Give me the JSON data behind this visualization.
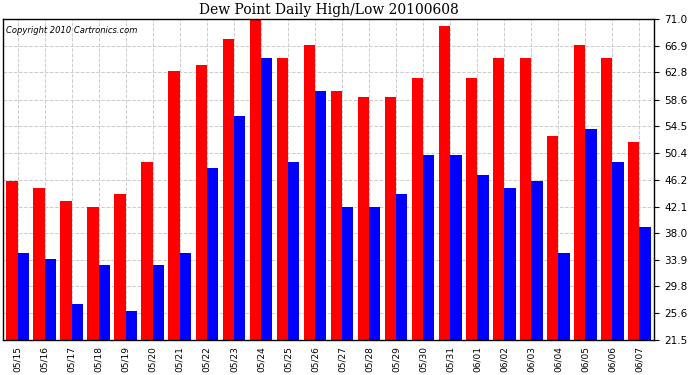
{
  "title": "Dew Point Daily High/Low 20100608",
  "copyright": "Copyright 2010 Cartronics.com",
  "dates": [
    "05/15",
    "05/16",
    "05/17",
    "05/18",
    "05/19",
    "05/20",
    "05/21",
    "05/22",
    "05/23",
    "05/24",
    "05/25",
    "05/26",
    "05/27",
    "05/28",
    "05/29",
    "05/30",
    "05/31",
    "06/01",
    "06/02",
    "06/03",
    "06/04",
    "06/05",
    "06/06",
    "06/07"
  ],
  "highs": [
    46,
    45,
    43,
    42,
    44,
    49,
    63,
    64,
    68,
    71,
    65,
    67,
    60,
    59,
    59,
    62,
    70,
    62,
    65,
    65,
    53,
    67,
    65,
    52
  ],
  "lows": [
    35,
    34,
    27,
    33,
    26,
    33,
    35,
    48,
    56,
    65,
    49,
    60,
    42,
    42,
    44,
    50,
    50,
    47,
    45,
    46,
    35,
    54,
    49,
    39
  ],
  "high_color": "#ff0000",
  "low_color": "#0000ff",
  "ylim_min": 21.5,
  "ylim_max": 71.0,
  "yticks": [
    21.5,
    25.6,
    29.8,
    33.9,
    38.0,
    42.1,
    46.2,
    50.4,
    54.5,
    58.6,
    62.8,
    66.9,
    71.0
  ],
  "grid_color": "#cccccc",
  "bar_width": 0.42,
  "figure_bg": "#ffffff",
  "axes_bg": "#ffffff",
  "figsize": [
    6.9,
    3.75
  ],
  "dpi": 100
}
